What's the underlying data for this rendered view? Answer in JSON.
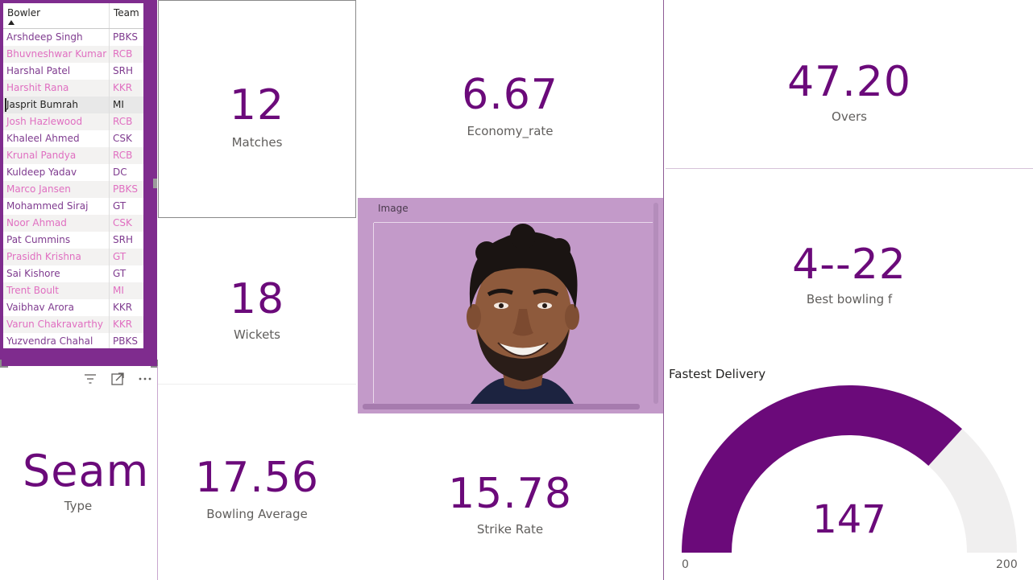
{
  "table": {
    "headers": {
      "bowler": "Bowler",
      "team": "Team"
    },
    "rows": [
      {
        "bowler": "Arshdeep Singh",
        "team": "PBKS"
      },
      {
        "bowler": "Bhuvneshwar Kumar",
        "team": "RCB"
      },
      {
        "bowler": "Harshal Patel",
        "team": "SRH"
      },
      {
        "bowler": "Harshit Rana",
        "team": "KKR"
      },
      {
        "bowler": "Jasprit Bumrah",
        "team": "MI"
      },
      {
        "bowler": "Josh Hazlewood",
        "team": "RCB"
      },
      {
        "bowler": "Khaleel Ahmed",
        "team": "CSK"
      },
      {
        "bowler": "Krunal Pandya",
        "team": "RCB"
      },
      {
        "bowler": "Kuldeep Yadav",
        "team": "DC"
      },
      {
        "bowler": "Marco Jansen",
        "team": "PBKS"
      },
      {
        "bowler": "Mohammed Siraj",
        "team": "GT"
      },
      {
        "bowler": "Noor Ahmad",
        "team": "CSK"
      },
      {
        "bowler": "Pat Cummins",
        "team": "SRH"
      },
      {
        "bowler": "Prasidh Krishna",
        "team": "GT"
      },
      {
        "bowler": "Sai Kishore",
        "team": "GT"
      },
      {
        "bowler": "Trent Boult",
        "team": "MI"
      },
      {
        "bowler": "Vaibhav Arora",
        "team": "KKR"
      },
      {
        "bowler": "Varun Chakravarthy",
        "team": "KKR"
      },
      {
        "bowler": "Yuzvendra Chahal",
        "team": "PBKS"
      }
    ],
    "selected_bowler": "Jasprit Bumrah"
  },
  "kpis": {
    "matches": {
      "value": "12",
      "label": "Matches"
    },
    "economy": {
      "value": "6.67",
      "label": "Economy_rate"
    },
    "overs": {
      "value": "47.20",
      "label": "Overs"
    },
    "wickets": {
      "value": "18",
      "label": "Wickets"
    },
    "best": {
      "value": "4--22",
      "label": "Best bowling f"
    },
    "type": {
      "value": "Seam",
      "label": "Type"
    },
    "average": {
      "value": "17.56",
      "label": "Bowling Average"
    },
    "strike": {
      "value": "15.78",
      "label": "Strike Rate"
    }
  },
  "image_visual": {
    "title": "Image"
  },
  "gauge": {
    "title": "Fastest Delivery",
    "value": 147,
    "min": 0,
    "max": 200,
    "value_label": "147",
    "min_label": "0",
    "max_label": "200",
    "fill_color": "#6b0a7a",
    "track_color": "#f0efef"
  },
  "colors": {
    "accent": "#6b0a7a",
    "table_frame": "#7f2c8e",
    "image_bg": "#c39ac9"
  },
  "icons": [
    "filter-icon",
    "focus-mode-icon",
    "more-options-icon"
  ]
}
